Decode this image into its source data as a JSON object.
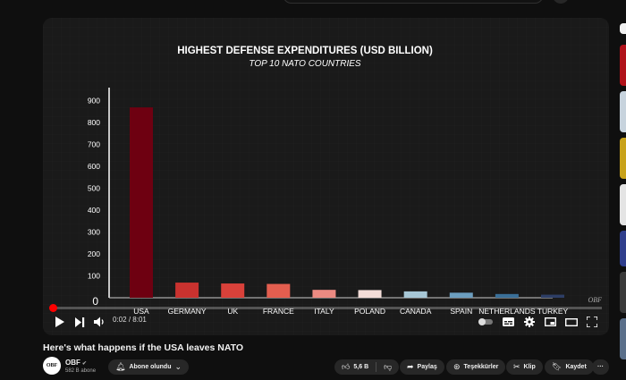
{
  "video": {
    "title": "Here's what happens if the USA leaves NATO",
    "time_current": "0:02",
    "time_total": "8:01",
    "progress_fraction": 0.004
  },
  "channel": {
    "avatar_text": "OBF",
    "name": "OBF",
    "subscribers": "582 B abone",
    "subscribe_label": "Abone olundu"
  },
  "actions": {
    "likes": "5,6 B",
    "share": "Paylaş",
    "thanks": "Teşekkürler",
    "clip": "Klip",
    "save": "Kaydet",
    "more": "···"
  },
  "watermark": "OBF",
  "chart_data": {
    "type": "bar",
    "title": "HIGHEST DEFENSE EXPENDITURES (USD BILLION)",
    "subtitle": "TOP 10 NATO COUNTRIES",
    "categories": [
      "USA",
      "GERMANY",
      "UK",
      "FRANCE",
      "ITALY",
      "POLAND",
      "CANADA",
      "SPAIN",
      "NETHERLANDS",
      "TURKEY"
    ],
    "values": [
      868,
      69,
      65,
      63,
      36,
      35,
      29,
      23,
      17,
      14
    ],
    "yticks": [
      0,
      100,
      200,
      300,
      400,
      500,
      600,
      700,
      800,
      900
    ],
    "ylim": [
      0,
      950
    ],
    "grid": true,
    "colors": [
      "#6e0011",
      "#c9322f",
      "#d9413a",
      "#e35e4f",
      "#eb8a82",
      "#f3ddd8",
      "#a7c7d6",
      "#6c9ebf",
      "#3a6f98",
      "#2d3e66"
    ]
  },
  "theme": {
    "accent": "#ff0000",
    "background": "#0f0f0f",
    "player_bg": "#1a1a1a"
  }
}
